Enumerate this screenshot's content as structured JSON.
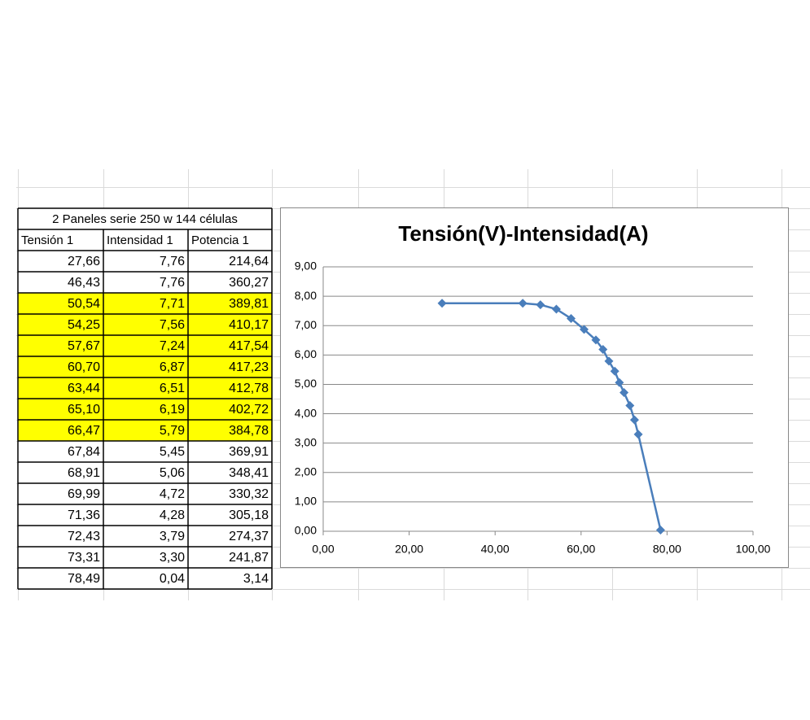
{
  "table": {
    "title": "2 Paneles serie 250 w 144 células",
    "columns": [
      "Tensión 1",
      "Intensidad 1",
      "Potencia 1"
    ],
    "rows": [
      [
        "27,66",
        "7,76",
        "214,64"
      ],
      [
        "46,43",
        "7,76",
        "360,27"
      ],
      [
        "50,54",
        "7,71",
        "389,81"
      ],
      [
        "54,25",
        "7,56",
        "410,17"
      ],
      [
        "57,67",
        "7,24",
        "417,54"
      ],
      [
        "60,70",
        "6,87",
        "417,23"
      ],
      [
        "63,44",
        "6,51",
        "412,78"
      ],
      [
        "65,10",
        "6,19",
        "402,72"
      ],
      [
        "66,47",
        "5,79",
        "384,78"
      ],
      [
        "67,84",
        "5,45",
        "369,91"
      ],
      [
        "68,91",
        "5,06",
        "348,41"
      ],
      [
        "69,99",
        "4,72",
        "330,32"
      ],
      [
        "71,36",
        "4,28",
        "305,18"
      ],
      [
        "72,43",
        "3,79",
        "274,37"
      ],
      [
        "73,31",
        "3,30",
        "241,87"
      ],
      [
        "78,49",
        "0,04",
        "3,14"
      ]
    ],
    "highlighted_rows": [
      2,
      3,
      4,
      5,
      6,
      7,
      8
    ],
    "highlight_color": "#ffff00"
  },
  "chart_data": {
    "type": "line",
    "title": "Tensión(V)-Intensidad(A)",
    "x": [
      27.66,
      46.43,
      50.54,
      54.25,
      57.67,
      60.7,
      63.44,
      65.1,
      66.47,
      67.84,
      68.91,
      69.99,
      71.36,
      72.43,
      73.31,
      78.49
    ],
    "series": [
      {
        "name": "Intensidad 1",
        "color": "#4a7ebb",
        "values": [
          7.76,
          7.76,
          7.71,
          7.56,
          7.24,
          6.87,
          6.51,
          6.19,
          5.79,
          5.45,
          5.06,
          4.72,
          4.28,
          3.79,
          3.3,
          0.04
        ]
      }
    ],
    "xlim": [
      0,
      100
    ],
    "xticks": [
      {
        "value": 0,
        "label": "0,00"
      },
      {
        "value": 20,
        "label": "20,00"
      },
      {
        "value": 40,
        "label": "40,00"
      },
      {
        "value": 60,
        "label": "60,00"
      },
      {
        "value": 80,
        "label": "80,00"
      },
      {
        "value": 100,
        "label": "100,00"
      }
    ],
    "ylim": [
      0,
      9
    ],
    "yticks": [
      {
        "value": 0,
        "label": "0,00"
      },
      {
        "value": 1,
        "label": "1,00"
      },
      {
        "value": 2,
        "label": "2,00"
      },
      {
        "value": 3,
        "label": "3,00"
      },
      {
        "value": 4,
        "label": "4,00"
      },
      {
        "value": 5,
        "label": "5,00"
      },
      {
        "value": 6,
        "label": "6,00"
      },
      {
        "value": 7,
        "label": "7,00"
      },
      {
        "value": 8,
        "label": "8,00"
      },
      {
        "value": 9,
        "label": "9,00"
      }
    ],
    "grid": true,
    "marker": "diamond"
  }
}
